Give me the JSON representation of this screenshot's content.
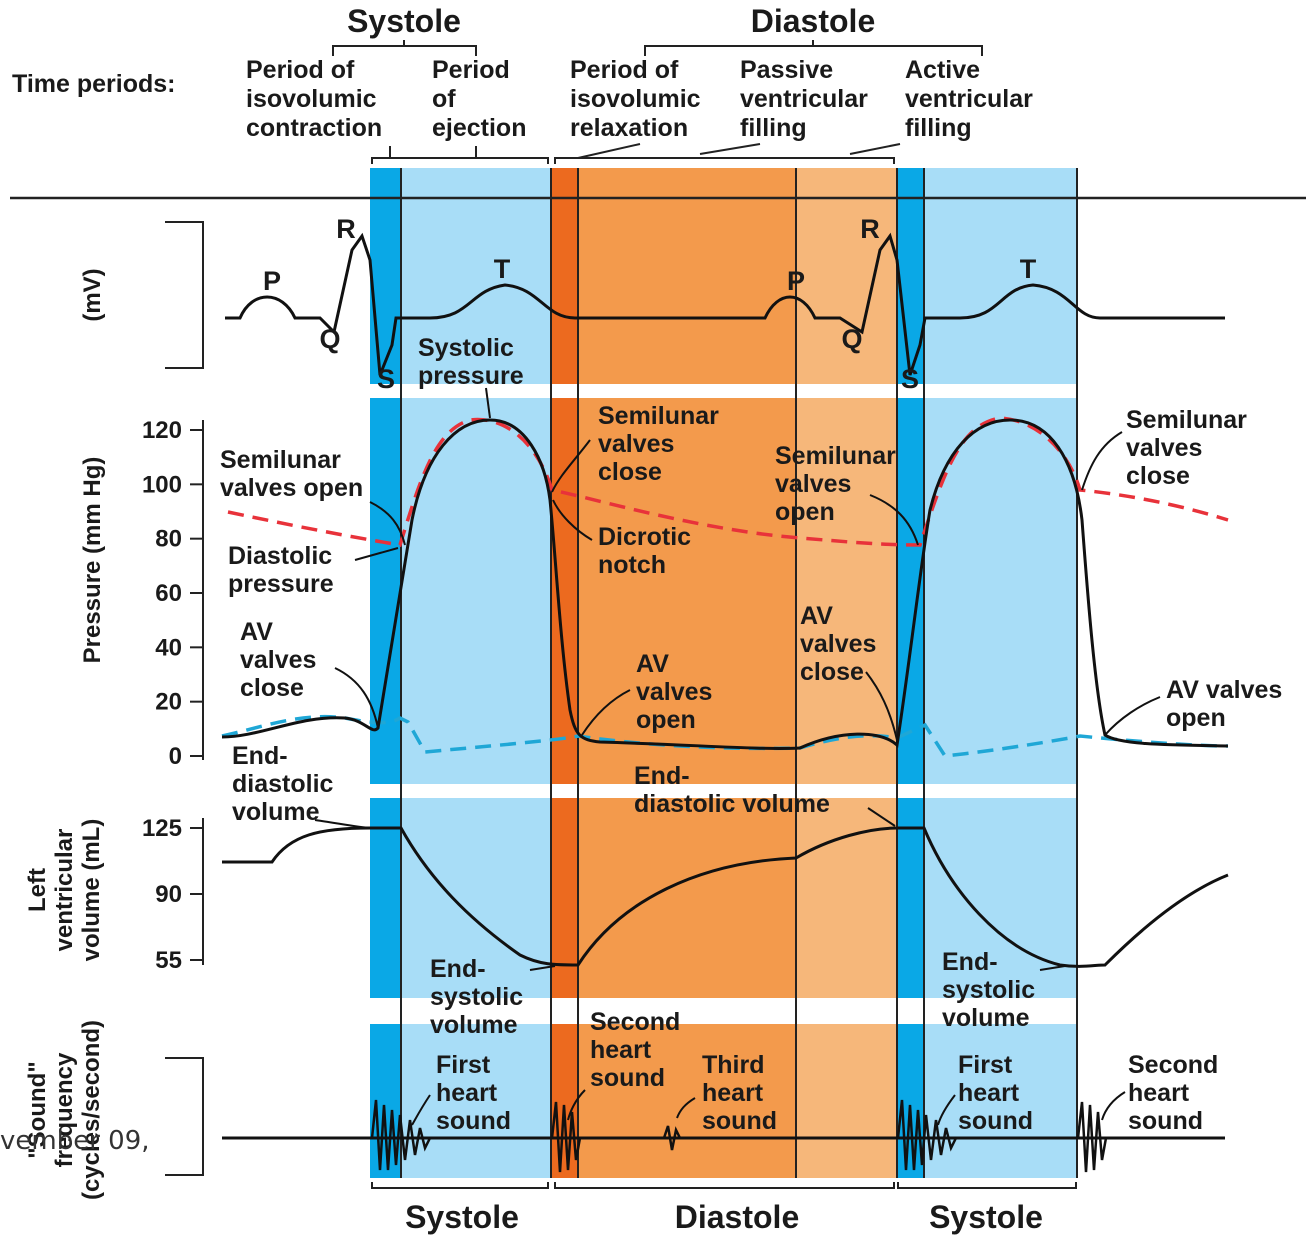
{
  "header": {
    "systole": "Systole",
    "diastole": "Diastole",
    "time_periods_label": "Time periods:",
    "periods": [
      [
        "Period of",
        "isovolumic",
        "contraction"
      ],
      [
        "Period",
        "of",
        "ejection"
      ],
      [
        "Period of",
        "isovolumic",
        "relaxation"
      ],
      [
        "Passive",
        "ventricular",
        "filling"
      ],
      [
        "Active",
        "ventricular",
        "filling"
      ]
    ]
  },
  "axes": {
    "ecg_unit": "(mV)",
    "pressure": "Pressure (mm Hg)",
    "pressure_ticks": [
      "120",
      "100",
      "80",
      "60",
      "40",
      "20",
      "0"
    ],
    "volume_lines": [
      "Left",
      "ventricular",
      "volume (mL)"
    ],
    "volume_ticks": [
      "125",
      "90",
      "55"
    ],
    "sound_lines": [
      "\"Sound\"",
      "frequency",
      "(cycles/second)"
    ]
  },
  "waves": {
    "P": "P",
    "Q": "Q",
    "R": "R",
    "S": "S",
    "T": "T"
  },
  "annotations": {
    "systolic_pressure": [
      "Systolic",
      "pressure"
    ],
    "semilunar_open_left": [
      "Semilunar",
      "valves open"
    ],
    "diastolic_pressure": [
      "Diastolic",
      "pressure"
    ],
    "av_close_left": [
      "AV",
      "valves",
      "close"
    ],
    "semilunar_close_mid": [
      "Semilunar",
      "valves",
      "close"
    ],
    "dicrotic_notch": [
      "Dicrotic",
      "notch"
    ],
    "semilunar_open_right": [
      "Semilunar",
      "valves",
      "open"
    ],
    "av_open_mid": [
      "AV",
      "valves",
      "open"
    ],
    "av_close_right": [
      "AV",
      "valves",
      "close"
    ],
    "semilunar_close_right": [
      "Semilunar",
      "valves",
      "close"
    ],
    "av_open_right": [
      "AV valves",
      "open"
    ],
    "edv_left": [
      "End-",
      "diastolic",
      "volume"
    ],
    "edv_mid": [
      "End-",
      "diastolic volume"
    ],
    "esv_left": [
      "End-",
      "systolic",
      "volume"
    ],
    "esv_right": [
      "End-",
      "systolic",
      "volume"
    ],
    "first_sound_left": [
      "First",
      "heart",
      "sound"
    ],
    "second_sound_mid": [
      "Second",
      "heart",
      "sound"
    ],
    "third_sound": [
      "Third",
      "heart",
      "sound"
    ],
    "first_sound_right": [
      "First",
      "heart",
      "sound"
    ],
    "second_sound_right": [
      "Second",
      "heart",
      "sound"
    ]
  },
  "footer": {
    "left": "Systole",
    "middle": "Diastole",
    "right": "Systole"
  },
  "stray_text": "vember 09,",
  "colors": {
    "iso_contraction": "#0aa8e6",
    "ejection": "#a8ddf7",
    "iso_relaxation": "#ec6a1f",
    "passive_filling": "#f39a4c",
    "active_filling": "#f6b77a",
    "aortic_pressure": "#e8323a",
    "atrial_pressure": "#1fa7d6",
    "trace": "#111111"
  }
}
